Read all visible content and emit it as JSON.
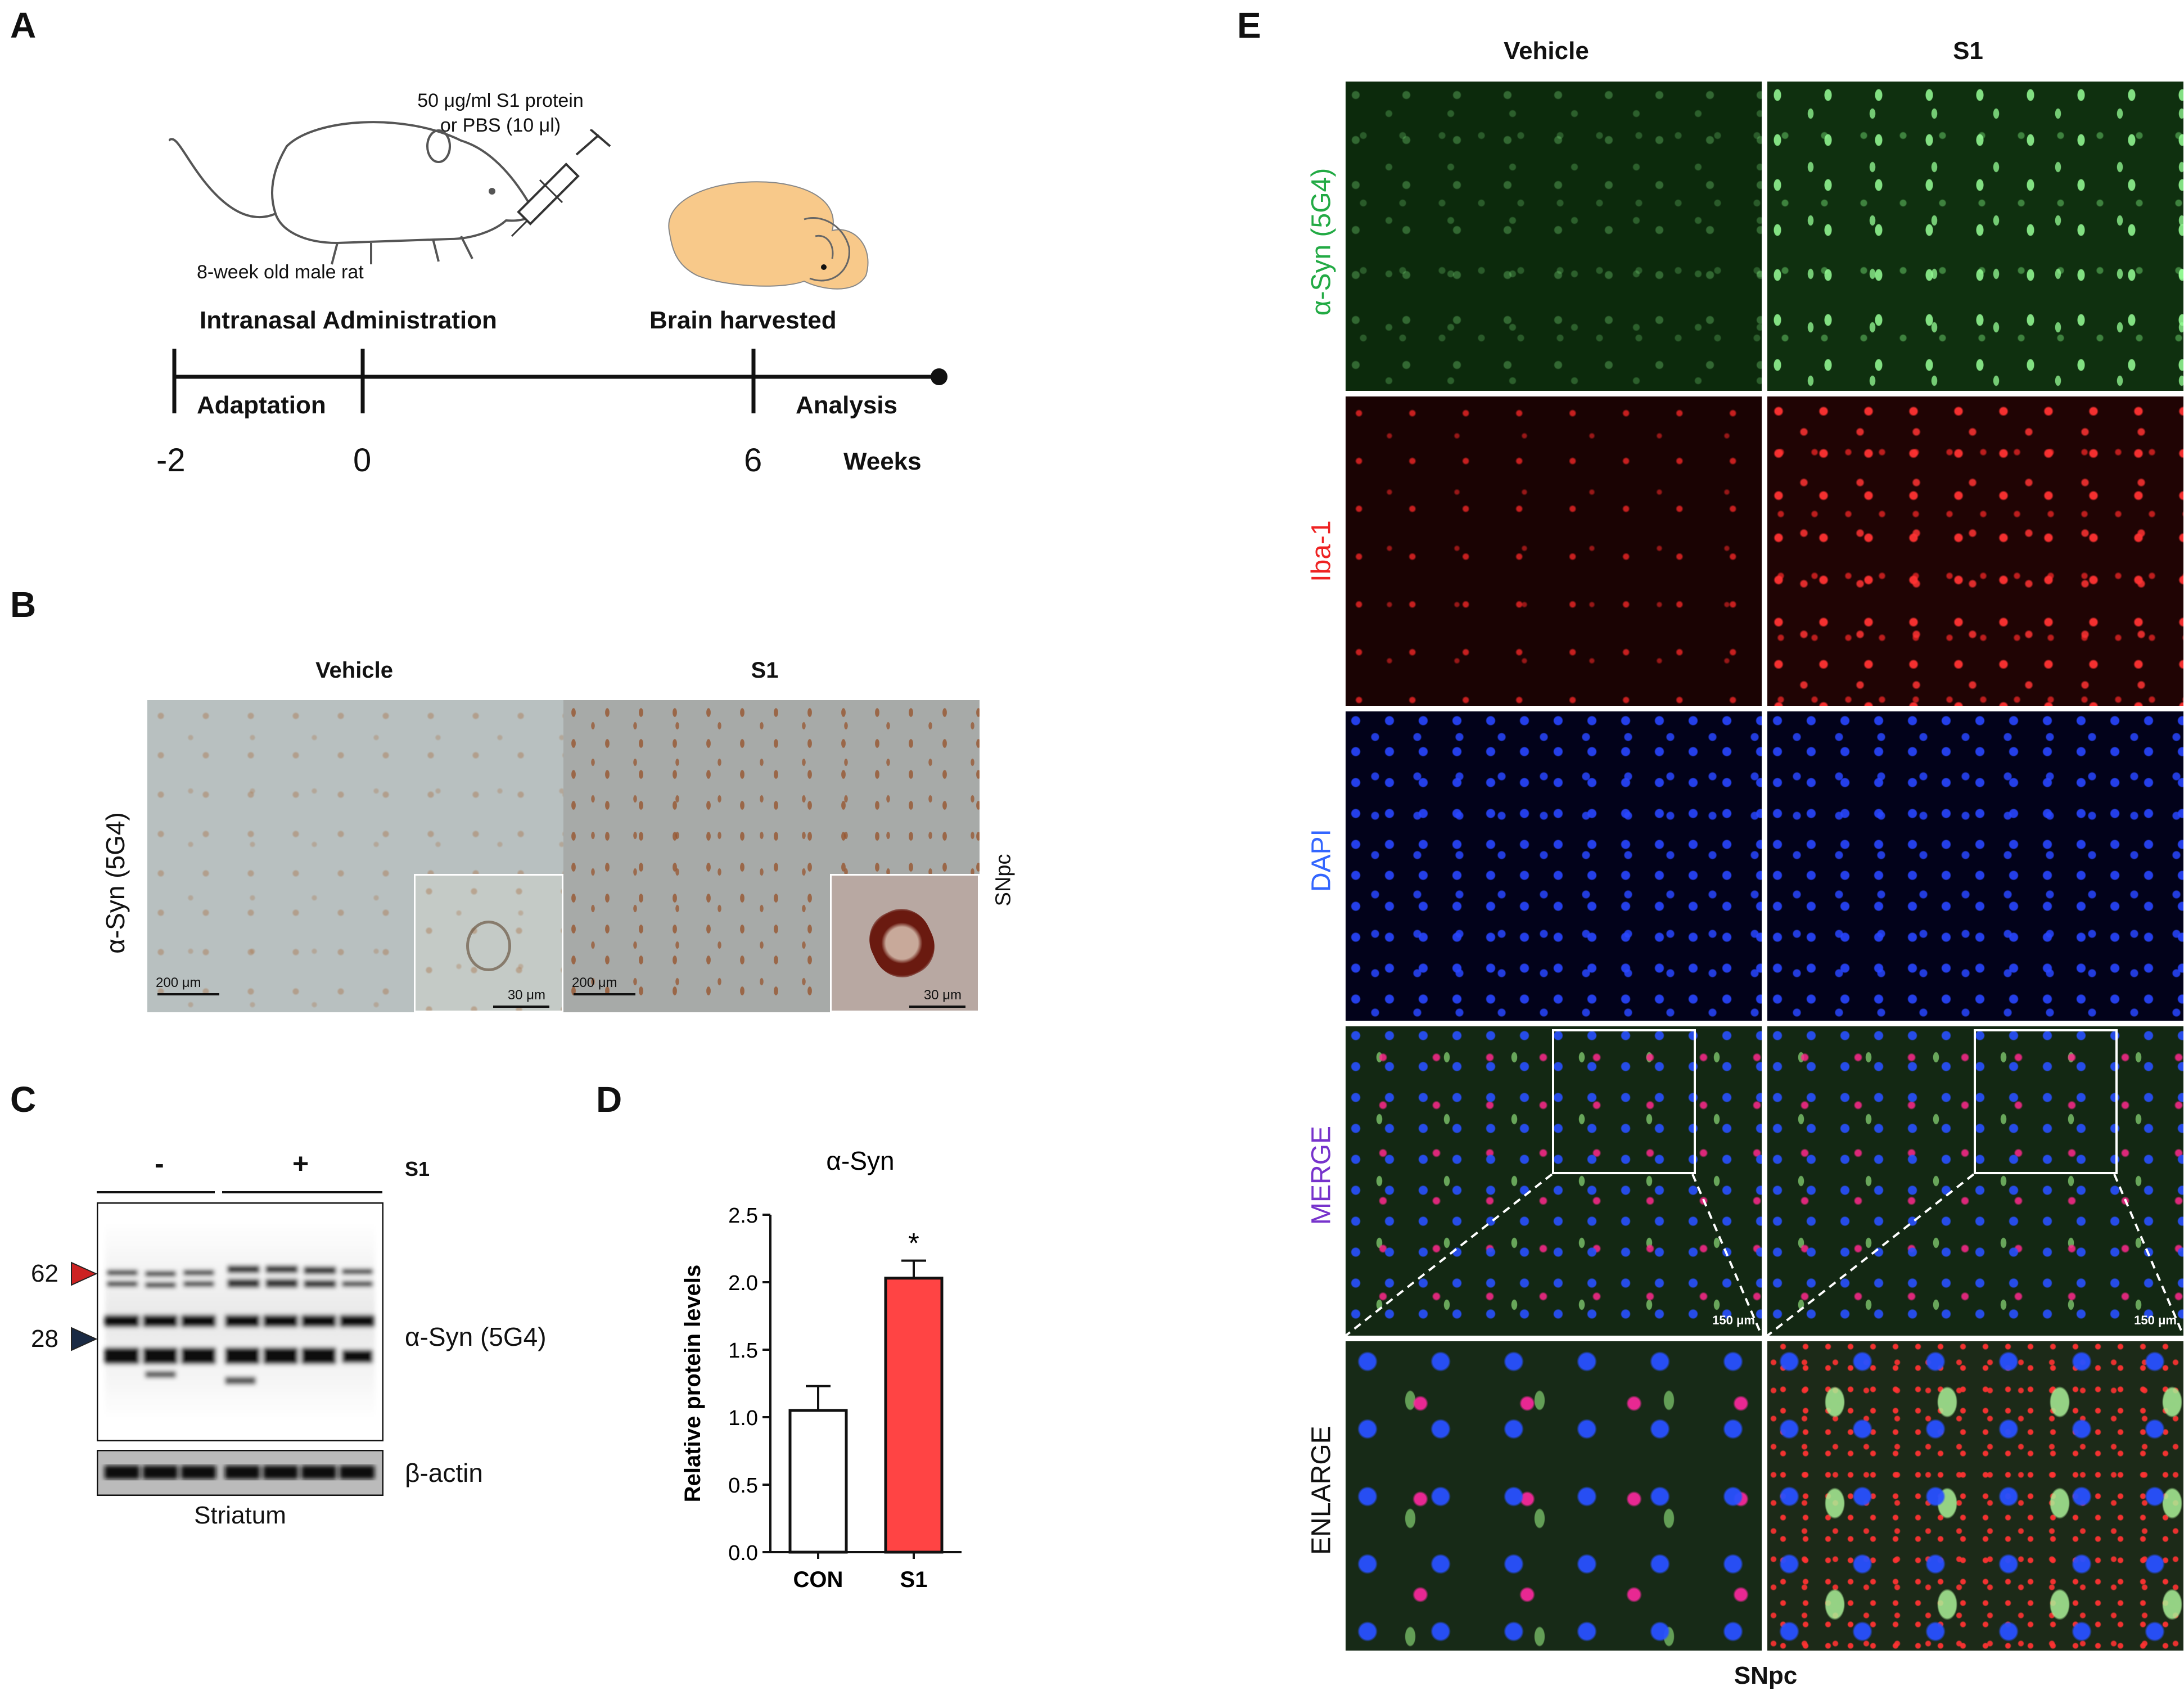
{
  "panels": {
    "A": {
      "letter": "A",
      "dose_line1": "50 μg/ml S1 protein",
      "dose_line2": "or PBS (10 μl)",
      "rat_label": "8-week old male rat",
      "admin_label": "Intranasal Administration",
      "brain_label": "Brain harvested",
      "adaptation": "Adaptation",
      "analysis": "Analysis",
      "t_minus2": "-2",
      "t_0": "0",
      "t_6": "6",
      "weeks": "Weeks"
    },
    "B": {
      "letter": "B",
      "vehicle": "Vehicle",
      "s1": "S1",
      "stain": "α-Syn (5G4)",
      "region": "SNpc",
      "scale_big": "200 μm",
      "scale_small": "30 μm"
    },
    "C": {
      "letter": "C",
      "minus": "-",
      "plus": "+",
      "s1": "S1",
      "mw_62": "62",
      "mw_28": "28",
      "blot_label": "α-Syn (5G4)",
      "actin_label": "β-actin",
      "tissue": "Striatum"
    },
    "D": {
      "letter": "D"
    },
    "E": {
      "letter": "E",
      "vehicle": "Vehicle",
      "s1": "S1",
      "row_asyn": "α-Syn (5G4)",
      "row_iba": "Iba-1",
      "row_dapi": "DAPI",
      "row_merge": "MERGE",
      "row_enlarge": "ENLARGE",
      "scale": "150 μm",
      "region": "SNpc",
      "colors": {
        "asyn": "#22aa44",
        "iba": "#ee2222",
        "dapi": "#3366ff",
        "merge": "#7733cc",
        "enlarge": "#111111"
      }
    }
  },
  "chart_data": {
    "type": "bar",
    "title": "α-Syn",
    "xlabel": "",
    "ylabel": "Relative protein levels",
    "categories": [
      "CON",
      "S1"
    ],
    "values": [
      1.05,
      2.03
    ],
    "errors": [
      0.18,
      0.13
    ],
    "colors": [
      "#ffffff",
      "#ff4444"
    ],
    "ylim": [
      0,
      2.5
    ],
    "yticks": [
      "0.0",
      "0.5",
      "1.0",
      "1.5",
      "2.0",
      "2.5"
    ],
    "significance": [
      "",
      "*"
    ]
  }
}
